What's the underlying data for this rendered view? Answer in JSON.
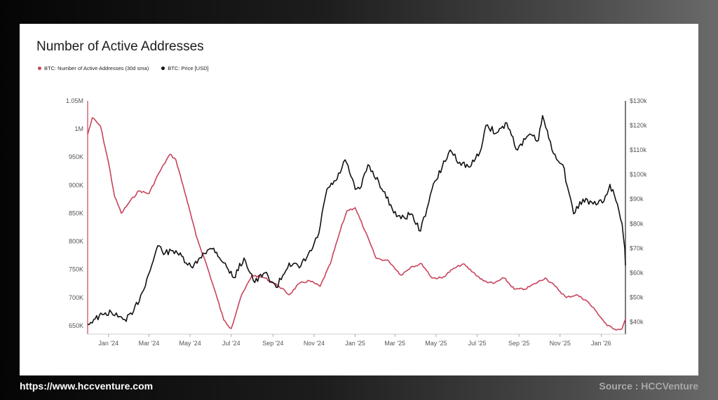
{
  "footer": {
    "url": "https://www.hccventure.com",
    "source": "Source : HCCVenture"
  },
  "colors": {
    "addresses": "#c8435b",
    "price": "#111111"
  },
  "chart_data": {
    "type": "line",
    "title": "Number of Active Addresses",
    "legend_placement": "top-left",
    "grid": false,
    "x_ticks": [
      "Jan '24",
      "Mar '24",
      "May '24",
      "Jul '24",
      "Sep '24",
      "Nov '24",
      "Jan '25",
      "Mar '25",
      "May '25",
      "Jul '25",
      "Sep '25",
      "Nov '25",
      "Jan '26"
    ],
    "x_range": [
      "2023-12-01",
      "2026-02-06"
    ],
    "left_axis": {
      "ticks": [
        "650K",
        "700K",
        "750K",
        "800K",
        "850K",
        "900K",
        "950K",
        "1M",
        "1.05M"
      ],
      "ylim": [
        635000,
        1050000
      ]
    },
    "right_axis": {
      "ticks": [
        "$40k",
        "$50k",
        "$60k",
        "$70k",
        "$80k",
        "$90k",
        "$100k",
        "$110k",
        "$120k",
        "$130k"
      ],
      "ylim": [
        35000,
        130000
      ]
    },
    "series": [
      {
        "name": "BTC: Number of Active Addresses (30d sma)",
        "axis": "left",
        "x": [
          "2023-12-01",
          "2023-12-08",
          "2023-12-20",
          "2024-01-01",
          "2024-01-10",
          "2024-01-20",
          "2024-02-01",
          "2024-02-15",
          "2024-03-01",
          "2024-03-15",
          "2024-04-01",
          "2024-04-10",
          "2024-04-25",
          "2024-05-10",
          "2024-05-25",
          "2024-06-10",
          "2024-06-20",
          "2024-07-01",
          "2024-07-15",
          "2024-08-01",
          "2024-08-20",
          "2024-09-10",
          "2024-09-25",
          "2024-10-10",
          "2024-10-25",
          "2024-11-10",
          "2024-11-25",
          "2024-12-10",
          "2024-12-20",
          "2025-01-01",
          "2025-01-15",
          "2025-02-01",
          "2025-02-20",
          "2025-03-10",
          "2025-03-25",
          "2025-04-10",
          "2025-04-25",
          "2025-05-10",
          "2025-05-25",
          "2025-06-10",
          "2025-06-25",
          "2025-07-10",
          "2025-07-25",
          "2025-08-10",
          "2025-08-25",
          "2025-09-10",
          "2025-09-25",
          "2025-10-10",
          "2025-10-25",
          "2025-11-10",
          "2025-11-25",
          "2025-12-10",
          "2025-12-25",
          "2026-01-10",
          "2026-01-25",
          "2026-02-01",
          "2026-02-06"
        ],
        "values": [
          990000,
          1020000,
          1005000,
          940000,
          880000,
          850000,
          870000,
          890000,
          885000,
          920000,
          955000,
          945000,
          880000,
          810000,
          760000,
          700000,
          660000,
          645000,
          700000,
          740000,
          735000,
          720000,
          705000,
          725000,
          730000,
          720000,
          760000,
          820000,
          855000,
          860000,
          820000,
          770000,
          765000,
          740000,
          755000,
          760000,
          735000,
          735000,
          750000,
          760000,
          745000,
          730000,
          725000,
          735000,
          715000,
          715000,
          725000,
          735000,
          720000,
          700000,
          705000,
          695000,
          675000,
          650000,
          643000,
          645000,
          662000
        ]
      },
      {
        "name": "BTC: Price [USD]",
        "axis": "right",
        "x": [
          "2023-12-01",
          "2023-12-10",
          "2023-12-25",
          "2024-01-05",
          "2024-01-15",
          "2024-01-25",
          "2024-02-05",
          "2024-02-20",
          "2024-03-05",
          "2024-03-14",
          "2024-03-25",
          "2024-04-10",
          "2024-04-25",
          "2024-05-05",
          "2024-05-20",
          "2024-06-05",
          "2024-06-20",
          "2024-07-05",
          "2024-07-20",
          "2024-08-05",
          "2024-08-20",
          "2024-09-06",
          "2024-09-25",
          "2024-10-10",
          "2024-10-28",
          "2024-11-08",
          "2024-11-20",
          "2024-12-05",
          "2024-12-17",
          "2025-01-01",
          "2025-01-10",
          "2025-01-20",
          "2025-02-05",
          "2025-02-25",
          "2025-03-10",
          "2025-03-25",
          "2025-04-08",
          "2025-04-25",
          "2025-05-10",
          "2025-05-22",
          "2025-06-05",
          "2025-06-20",
          "2025-07-05",
          "2025-07-14",
          "2025-07-30",
          "2025-08-14",
          "2025-08-30",
          "2025-09-15",
          "2025-09-30",
          "2025-10-06",
          "2025-10-20",
          "2025-11-05",
          "2025-11-21",
          "2025-12-05",
          "2025-12-20",
          "2026-01-05",
          "2026-01-14",
          "2026-01-25",
          "2026-02-01",
          "2026-02-05",
          "2026-02-06"
        ],
        "values": [
          39000,
          41000,
          43000,
          44000,
          42000,
          41000,
          43000,
          52000,
          63000,
          71000,
          68000,
          69000,
          64000,
          62000,
          68000,
          70000,
          64000,
          58000,
          66000,
          56000,
          60000,
          54000,
          64000,
          62000,
          69000,
          76000,
          94000,
          98000,
          106000,
          94000,
          95000,
          104000,
          97000,
          86000,
          82000,
          84000,
          77000,
          94000,
          103000,
          110000,
          105000,
          103000,
          109000,
          120000,
          117000,
          121000,
          110000,
          116000,
          114000,
          124000,
          110000,
          104000,
          84000,
          90000,
          88000,
          89000,
          96000,
          88000,
          80000,
          70000,
          63000
        ]
      }
    ]
  }
}
